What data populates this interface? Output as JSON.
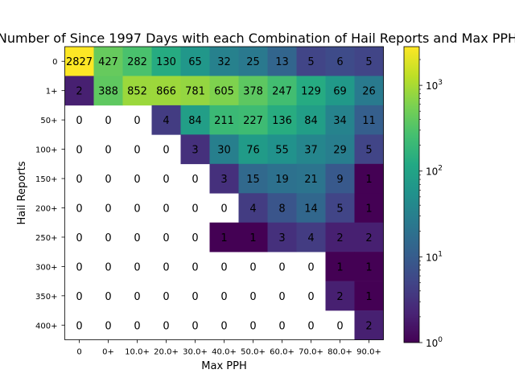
{
  "chart_data": {
    "type": "heatmap",
    "title": "Number of Since 1997 Days with each Combination of Hail Reports and Max PPH",
    "xlabel": "Max PPH",
    "ylabel": "Hail Reports",
    "x_categories": [
      "0",
      "0+",
      "10.0+",
      "20.0+",
      "30.0+",
      "40.0+",
      "50.0+",
      "60.0+",
      "70.0+",
      "80.0+",
      "90.0+"
    ],
    "y_categories": [
      "0",
      "1+",
      "50+",
      "100+",
      "150+",
      "200+",
      "250+",
      "300+",
      "350+",
      "400+"
    ],
    "values": [
      [
        2827,
        427,
        282,
        130,
        65,
        32,
        25,
        13,
        5,
        6,
        5
      ],
      [
        2,
        388,
        852,
        866,
        781,
        605,
        378,
        247,
        129,
        69,
        26
      ],
      [
        0,
        0,
        0,
        4,
        84,
        211,
        227,
        136,
        84,
        34,
        11
      ],
      [
        0,
        0,
        0,
        0,
        3,
        30,
        76,
        55,
        37,
        29,
        5
      ],
      [
        0,
        0,
        0,
        0,
        0,
        3,
        15,
        19,
        21,
        9,
        1
      ],
      [
        0,
        0,
        0,
        0,
        0,
        0,
        4,
        8,
        14,
        5,
        1
      ],
      [
        0,
        0,
        0,
        0,
        0,
        1,
        1,
        3,
        4,
        2,
        2
      ],
      [
        0,
        0,
        0,
        0,
        0,
        0,
        0,
        0,
        0,
        1,
        1
      ],
      [
        0,
        0,
        0,
        0,
        0,
        0,
        0,
        0,
        0,
        2,
        1
      ],
      [
        0,
        0,
        0,
        0,
        0,
        0,
        0,
        0,
        0,
        0,
        2
      ]
    ],
    "colorbar": {
      "scale": "log",
      "range": [
        1,
        2827
      ],
      "colormap": "viridis",
      "tick_labels": [
        "10^0",
        "10^1",
        "10^2",
        "10^3"
      ],
      "tick_values": [
        1,
        10,
        100,
        1000
      ]
    },
    "zero_cells": "blank white"
  }
}
